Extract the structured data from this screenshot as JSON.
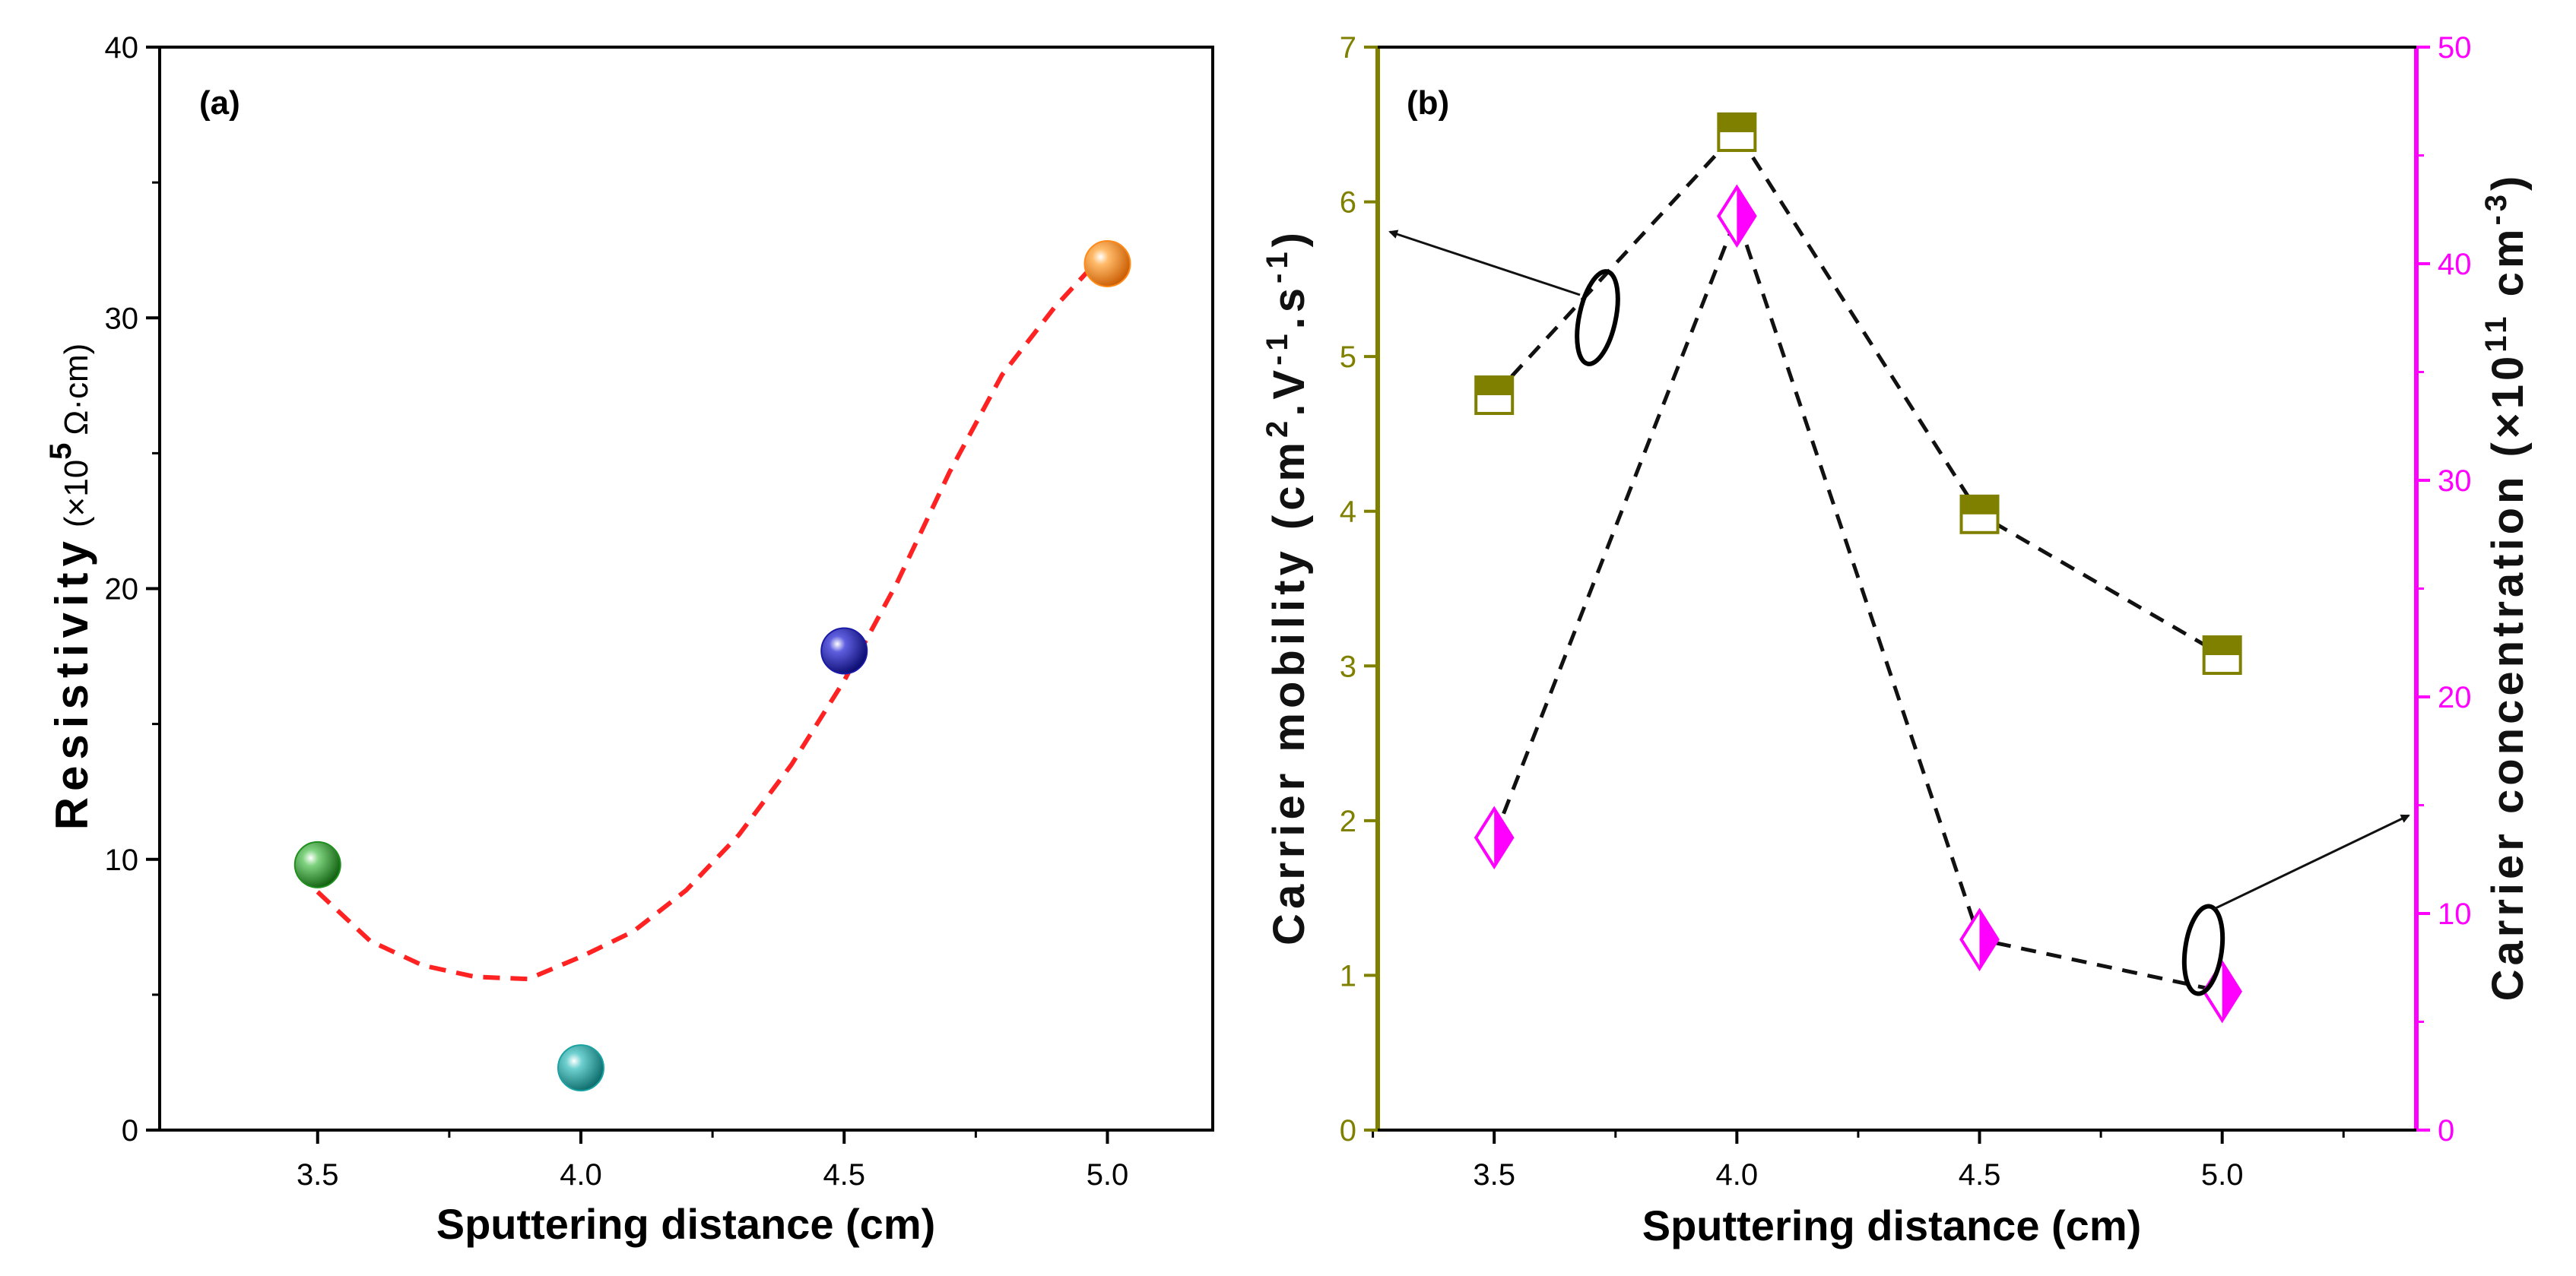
{
  "colors": {
    "resistivity_fit": "#ff2222",
    "mobility": "#808000",
    "concentration": "#ff00ff",
    "connector": "#111111"
  },
  "chart_data": [
    {
      "type": "scatter",
      "label": "(a)",
      "xlabel": "Sputtering distance (cm)",
      "ylabel": "Resistivity",
      "ylabel_unit": "(×10",
      "ylabel_exp": "5",
      "ylabel_tail": "Ω·cm)",
      "xlim": [
        3.2,
        5.2
      ],
      "ylim": [
        0,
        40
      ],
      "xticks": [
        "3.5",
        "4.0",
        "4.5",
        "5.0"
      ],
      "xtick_values": [
        3.5,
        4.0,
        4.5,
        5.0
      ],
      "yticks": [
        "0",
        "10",
        "20",
        "30",
        "40"
      ],
      "ytick_values": [
        0,
        10,
        20,
        30,
        40
      ],
      "points": [
        {
          "x": 3.5,
          "y": 9.8,
          "color": "#1f8f1f"
        },
        {
          "x": 4.0,
          "y": 2.3,
          "color": "#1aa3a3"
        },
        {
          "x": 4.5,
          "y": 17.7,
          "color": "#1a1aa8"
        },
        {
          "x": 5.0,
          "y": 32.0,
          "color": "#ff8a1a"
        }
      ],
      "fit": {
        "kind": "quadratic",
        "x": [
          3.5,
          3.6,
          3.7,
          3.8,
          3.9,
          4.0,
          4.1,
          4.2,
          4.3,
          4.4,
          4.5,
          4.6,
          4.7,
          4.8,
          4.9,
          5.0
        ],
        "y": [
          8.8,
          6.98,
          6.08,
          5.66,
          5.58,
          6.4,
          7.34,
          8.86,
          10.9,
          13.5,
          16.6,
          20.2,
          24.3,
          27.9,
          30.4,
          32.5
        ]
      }
    },
    {
      "type": "line",
      "label": "(b)",
      "xlabel": "Sputtering distance (cm)",
      "ylabel_left": "Carrier mobility (cm",
      "ylabel_left_parts": [
        "Carrier mobility (cm",
        "2",
        ".V",
        "-1",
        ".s",
        "-1",
        ")"
      ],
      "ylabel_right_parts": [
        "Carrier concentration (×10",
        "11",
        " cm",
        "-3",
        ")"
      ],
      "xlim": [
        3.26,
        5.4
      ],
      "ylim_left": [
        0,
        7
      ],
      "ylim_right": [
        0,
        50
      ],
      "xticks": [
        "3.5",
        "4.0",
        "4.5",
        "5.0"
      ],
      "xtick_values": [
        3.5,
        4.0,
        4.5,
        5.0
      ],
      "yticks_left": [
        "0",
        "1",
        "2",
        "3",
        "4",
        "5",
        "6",
        "7"
      ],
      "ytick_left_values": [
        0,
        1,
        2,
        3,
        4,
        5,
        6,
        7
      ],
      "yticks_right": [
        "0",
        "10",
        "20",
        "30",
        "40",
        "50"
      ],
      "ytick_right_values": [
        0,
        10,
        20,
        30,
        40,
        50
      ],
      "series": [
        {
          "name": "Carrier mobility",
          "axis": "left",
          "marker": "half-square",
          "x": [
            3.5,
            4.0,
            4.5,
            5.0
          ],
          "values": [
            4.75,
            6.45,
            3.98,
            3.07
          ]
        },
        {
          "name": "Carrier concentration",
          "axis": "right",
          "marker": "half-diamond",
          "x": [
            3.5,
            4.0,
            4.5,
            5.0
          ],
          "values": [
            13.5,
            42.2,
            8.8,
            6.4
          ]
        }
      ]
    }
  ]
}
